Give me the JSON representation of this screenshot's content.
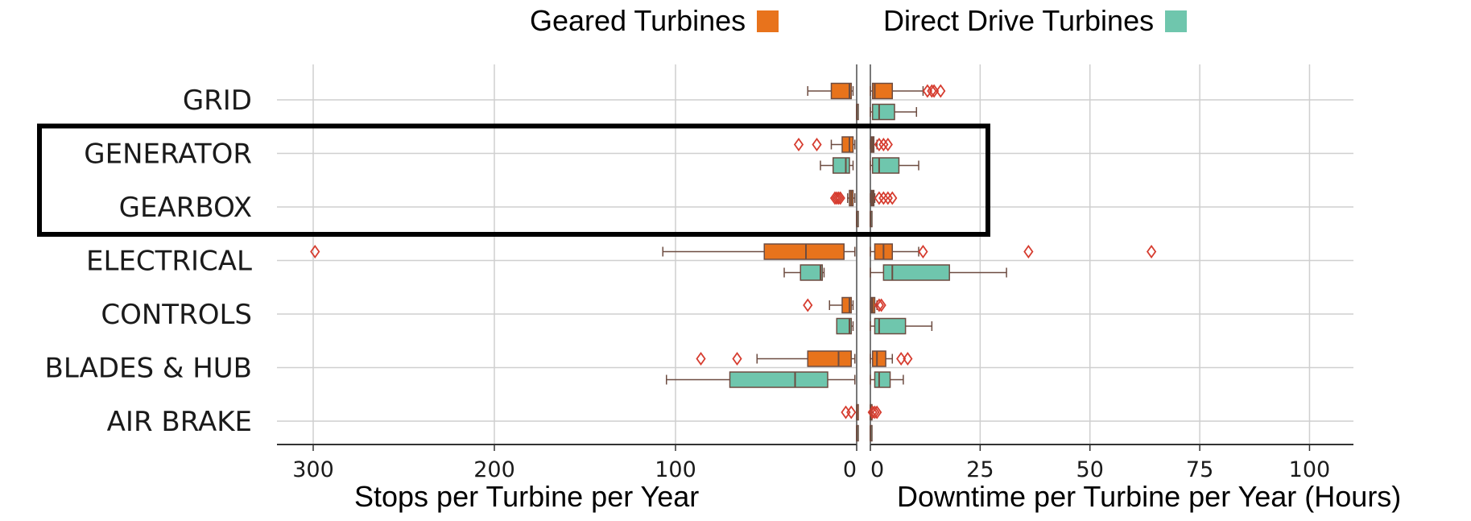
{
  "chart_data": {
    "type": "boxplot",
    "title": "",
    "categories": [
      "GRID",
      "GENERATOR",
      "GEARBOX",
      "ELECTRICAL",
      "CONTROLS",
      "BLADES & HUB",
      "AIR BRAKE"
    ],
    "highlighted_categories": [
      "GENERATOR",
      "GEARBOX"
    ],
    "legend": [
      {
        "name": "Geared Turbines",
        "color": "#e8731c"
      },
      {
        "name": "Direct Drive Turbines",
        "color": "#6fc6ad"
      }
    ],
    "left_panel": {
      "xlabel": "Stops per Turbine per Year",
      "xlim": [
        320,
        0
      ],
      "ticks": [
        300,
        200,
        100,
        0
      ],
      "tick_labels": [
        "300",
        "200",
        "100",
        "0"
      ],
      "series": [
        {
          "name": "Geared Turbines",
          "color": "#e8731c",
          "boxes": [
            {
              "category": "GRID",
              "whislo": 2,
              "q1": 3,
              "med": 4,
              "q3": 14,
              "whishi": 27,
              "fliers": []
            },
            {
              "category": "GENERATOR",
              "whislo": 1,
              "q1": 2,
              "med": 4,
              "q3": 8,
              "whishi": 14,
              "fliers": [
                22,
                32
              ]
            },
            {
              "category": "GEARBOX",
              "whislo": 1,
              "q1": 2,
              "med": 3,
              "q3": 4,
              "whishi": 5,
              "fliers": [
                9,
                10,
                11,
                12
              ]
            },
            {
              "category": "ELECTRICAL",
              "whislo": 1,
              "q1": 7,
              "med": 28,
              "q3": 51,
              "whishi": 107,
              "fliers": [
                299
              ]
            },
            {
              "category": "CONTROLS",
              "whislo": 2,
              "q1": 3,
              "med": 4,
              "q3": 8,
              "whishi": 15,
              "fliers": [
                27
              ]
            },
            {
              "category": "BLADES & HUB",
              "whislo": 1,
              "q1": 3,
              "med": 10,
              "q3": 27,
              "whishi": 55,
              "fliers": [
                66,
                86
              ]
            },
            {
              "category": "AIR BRAKE",
              "whislo": 0,
              "q1": 0,
              "med": 0,
              "q3": 0,
              "whishi": 0,
              "fliers": [
                3,
                6
              ]
            }
          ]
        },
        {
          "name": "Direct Drive Turbines",
          "color": "#6fc6ad",
          "boxes": [
            {
              "category": "GRID",
              "whislo": 0,
              "q1": 0,
              "med": 0,
              "q3": 0,
              "whishi": 0,
              "fliers": []
            },
            {
              "category": "GENERATOR",
              "whislo": 2,
              "q1": 4,
              "med": 6,
              "q3": 13,
              "whishi": 20,
              "fliers": []
            },
            {
              "category": "GEARBOX",
              "whislo": 0,
              "q1": 0,
              "med": 0,
              "q3": 0,
              "whishi": 0,
              "fliers": []
            },
            {
              "category": "ELECTRICAL",
              "whislo": 18,
              "q1": 19,
              "med": 20,
              "q3": 31,
              "whishi": 40,
              "fliers": []
            },
            {
              "category": "CONTROLS",
              "whislo": 2,
              "q1": 3,
              "med": 4,
              "q3": 11,
              "whishi": 11,
              "fliers": []
            },
            {
              "category": "BLADES & HUB",
              "whislo": 1,
              "q1": 16,
              "med": 34,
              "q3": 70,
              "whishi": 105,
              "fliers": []
            },
            {
              "category": "AIR BRAKE",
              "whislo": 0,
              "q1": 0,
              "med": 0,
              "q3": 0,
              "whishi": 0,
              "fliers": []
            }
          ]
        }
      ]
    },
    "right_panel": {
      "xlabel": "Downtime per Turbine per Year (Hours)",
      "xlim": [
        0,
        110
      ],
      "ticks": [
        0,
        25,
        50,
        75,
        100
      ],
      "tick_labels": [
        "0",
        "25",
        "50",
        "75",
        "100"
      ],
      "series": [
        {
          "name": "Geared Turbines",
          "color": "#e8731c",
          "boxes": [
            {
              "category": "GRID",
              "whislo": 0,
              "q1": 0.5,
              "med": 1,
              "q3": 5,
              "whishi": 12,
              "fliers": [
                13,
                14,
                14.5,
                16
              ]
            },
            {
              "category": "GENERATOR",
              "whislo": 0,
              "q1": 0.2,
              "med": 0.5,
              "q3": 0.8,
              "whishi": 1.5,
              "fliers": [
                2,
                3,
                4
              ]
            },
            {
              "category": "GEARBOX",
              "whislo": 0,
              "q1": 0.2,
              "med": 0.5,
              "q3": 0.8,
              "whishi": 1,
              "fliers": [
                2,
                3,
                4,
                5
              ]
            },
            {
              "category": "ELECTRICAL",
              "whislo": 0,
              "q1": 1,
              "med": 3,
              "q3": 5,
              "whishi": 11,
              "fliers": [
                12,
                36,
                64
              ]
            },
            {
              "category": "CONTROLS",
              "whislo": 0,
              "q1": 0.2,
              "med": 0.5,
              "q3": 1,
              "whishi": 1.5,
              "fliers": [
                2,
                2.5
              ]
            },
            {
              "category": "BLADES & HUB",
              "whislo": 0,
              "q1": 0.5,
              "med": 1.5,
              "q3": 3.5,
              "whishi": 5,
              "fliers": [
                7,
                8.5
              ]
            },
            {
              "category": "AIR BRAKE",
              "whislo": 0,
              "q1": 0,
              "med": 0,
              "q3": 0,
              "whishi": 0,
              "fliers": [
                0.5,
                1,
                1.5
              ]
            }
          ]
        },
        {
          "name": "Direct Drive Turbines",
          "color": "#6fc6ad",
          "boxes": [
            {
              "category": "GRID",
              "whislo": 0,
              "q1": 0.5,
              "med": 2,
              "q3": 5.5,
              "whishi": 10.5,
              "fliers": []
            },
            {
              "category": "GENERATOR",
              "whislo": 0,
              "q1": 0.5,
              "med": 2,
              "q3": 6.5,
              "whishi": 11,
              "fliers": []
            },
            {
              "category": "GEARBOX",
              "whislo": 0,
              "q1": 0,
              "med": 0,
              "q3": 0,
              "whishi": 0,
              "fliers": []
            },
            {
              "category": "ELECTRICAL",
              "whislo": 0,
              "q1": 3,
              "med": 5,
              "q3": 18,
              "whishi": 31,
              "fliers": []
            },
            {
              "category": "CONTROLS",
              "whislo": 0,
              "q1": 1,
              "med": 2,
              "q3": 8,
              "whishi": 14,
              "fliers": []
            },
            {
              "category": "BLADES & HUB",
              "whislo": 0,
              "q1": 1,
              "med": 2,
              "q3": 4.5,
              "whishi": 7.5,
              "fliers": []
            },
            {
              "category": "AIR BRAKE",
              "whislo": 0,
              "q1": 0,
              "med": 0,
              "q3": 0,
              "whishi": 0,
              "fliers": []
            }
          ]
        }
      ]
    }
  }
}
